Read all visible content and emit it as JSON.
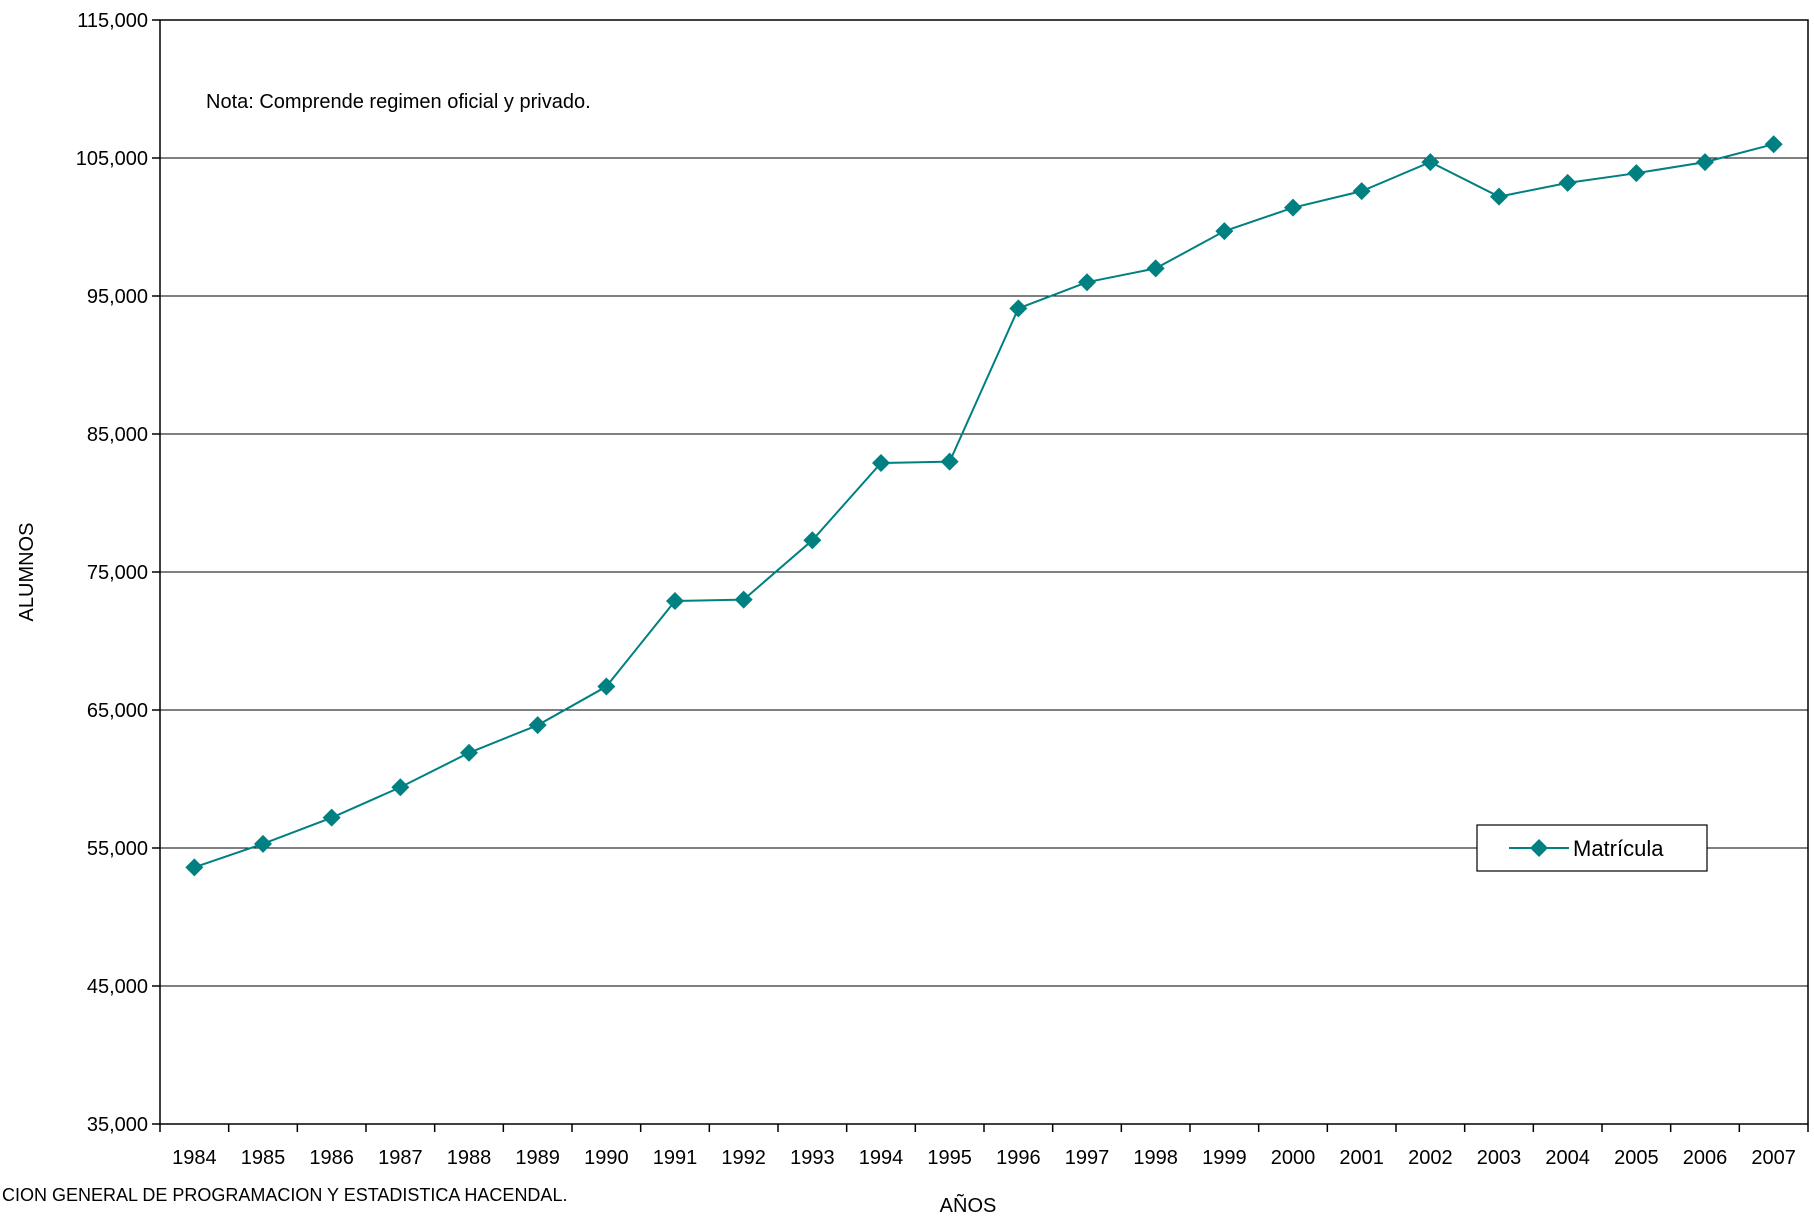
{
  "chart_data": {
    "type": "line",
    "title": "",
    "xlabel": "AÑOS",
    "ylabel": "ALUMNOS",
    "ylim": [
      35000,
      115000
    ],
    "y_ticks": [
      "35,000",
      "45,000",
      "55,000",
      "65,000",
      "75,000",
      "85,000",
      "95,000",
      "105,000",
      "115,000"
    ],
    "y_tick_values": [
      35000,
      45000,
      55000,
      65000,
      75000,
      85000,
      95000,
      105000,
      115000
    ],
    "categories": [
      "1984",
      "1985",
      "1986",
      "1987",
      "1988",
      "1989",
      "1990",
      "1991",
      "1992",
      "1993",
      "1994",
      "1995",
      "1996",
      "1997",
      "1998",
      "1999",
      "2000",
      "2001",
      "2002",
      "2003",
      "2004",
      "2005",
      "2006",
      "2007"
    ],
    "series": [
      {
        "name": "Matrícula",
        "color": "#008080",
        "marker": "diamond",
        "values": [
          53600,
          55300,
          57200,
          59400,
          61900,
          63900,
          66700,
          72900,
          73000,
          77300,
          82900,
          83000,
          94100,
          96000,
          97000,
          99700,
          101400,
          102600,
          104700,
          102200,
          103200,
          103900,
          104700,
          106000
        ]
      }
    ],
    "grid": true,
    "legend_position": "right",
    "annotation": "Nota: Comprende regimen oficial y privado.",
    "source": "CION GENERAL DE PROGRAMACION Y ESTADISTICA HACENDAL."
  }
}
